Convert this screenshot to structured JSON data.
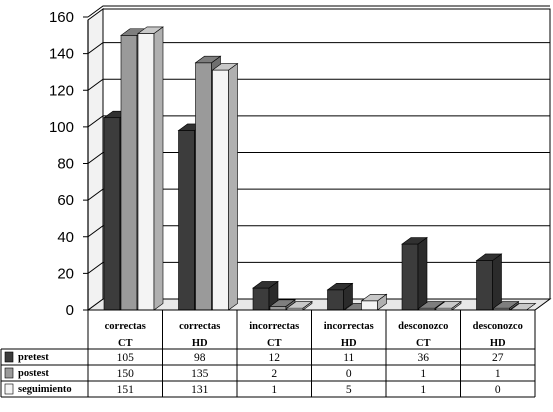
{
  "chart_data": {
    "type": "bar",
    "title": "",
    "xlabel": "",
    "ylabel": "",
    "ylim": [
      0,
      160
    ],
    "yticks": [
      0,
      20,
      40,
      60,
      80,
      100,
      120,
      140,
      160
    ],
    "grid": true,
    "categories": [
      [
        "correctas",
        "CT"
      ],
      [
        "correctas",
        "HD"
      ],
      [
        "incorrectas",
        "CT"
      ],
      [
        "incorrectas",
        "HD"
      ],
      [
        "desconozco",
        "CT"
      ],
      [
        "desconozco",
        "HD"
      ]
    ],
    "series": [
      {
        "name": "pretest",
        "values": [
          105,
          98,
          12,
          11,
          36,
          27
        ],
        "color": "#3c3c3c"
      },
      {
        "name": "postest",
        "values": [
          150,
          135,
          2,
          0,
          1,
          1
        ],
        "color": "#9a9a9a"
      },
      {
        "name": "seguimiento",
        "values": [
          151,
          131,
          1,
          5,
          1,
          0
        ],
        "color": "#f4f4f4"
      }
    ],
    "legend": "data-table-below"
  }
}
